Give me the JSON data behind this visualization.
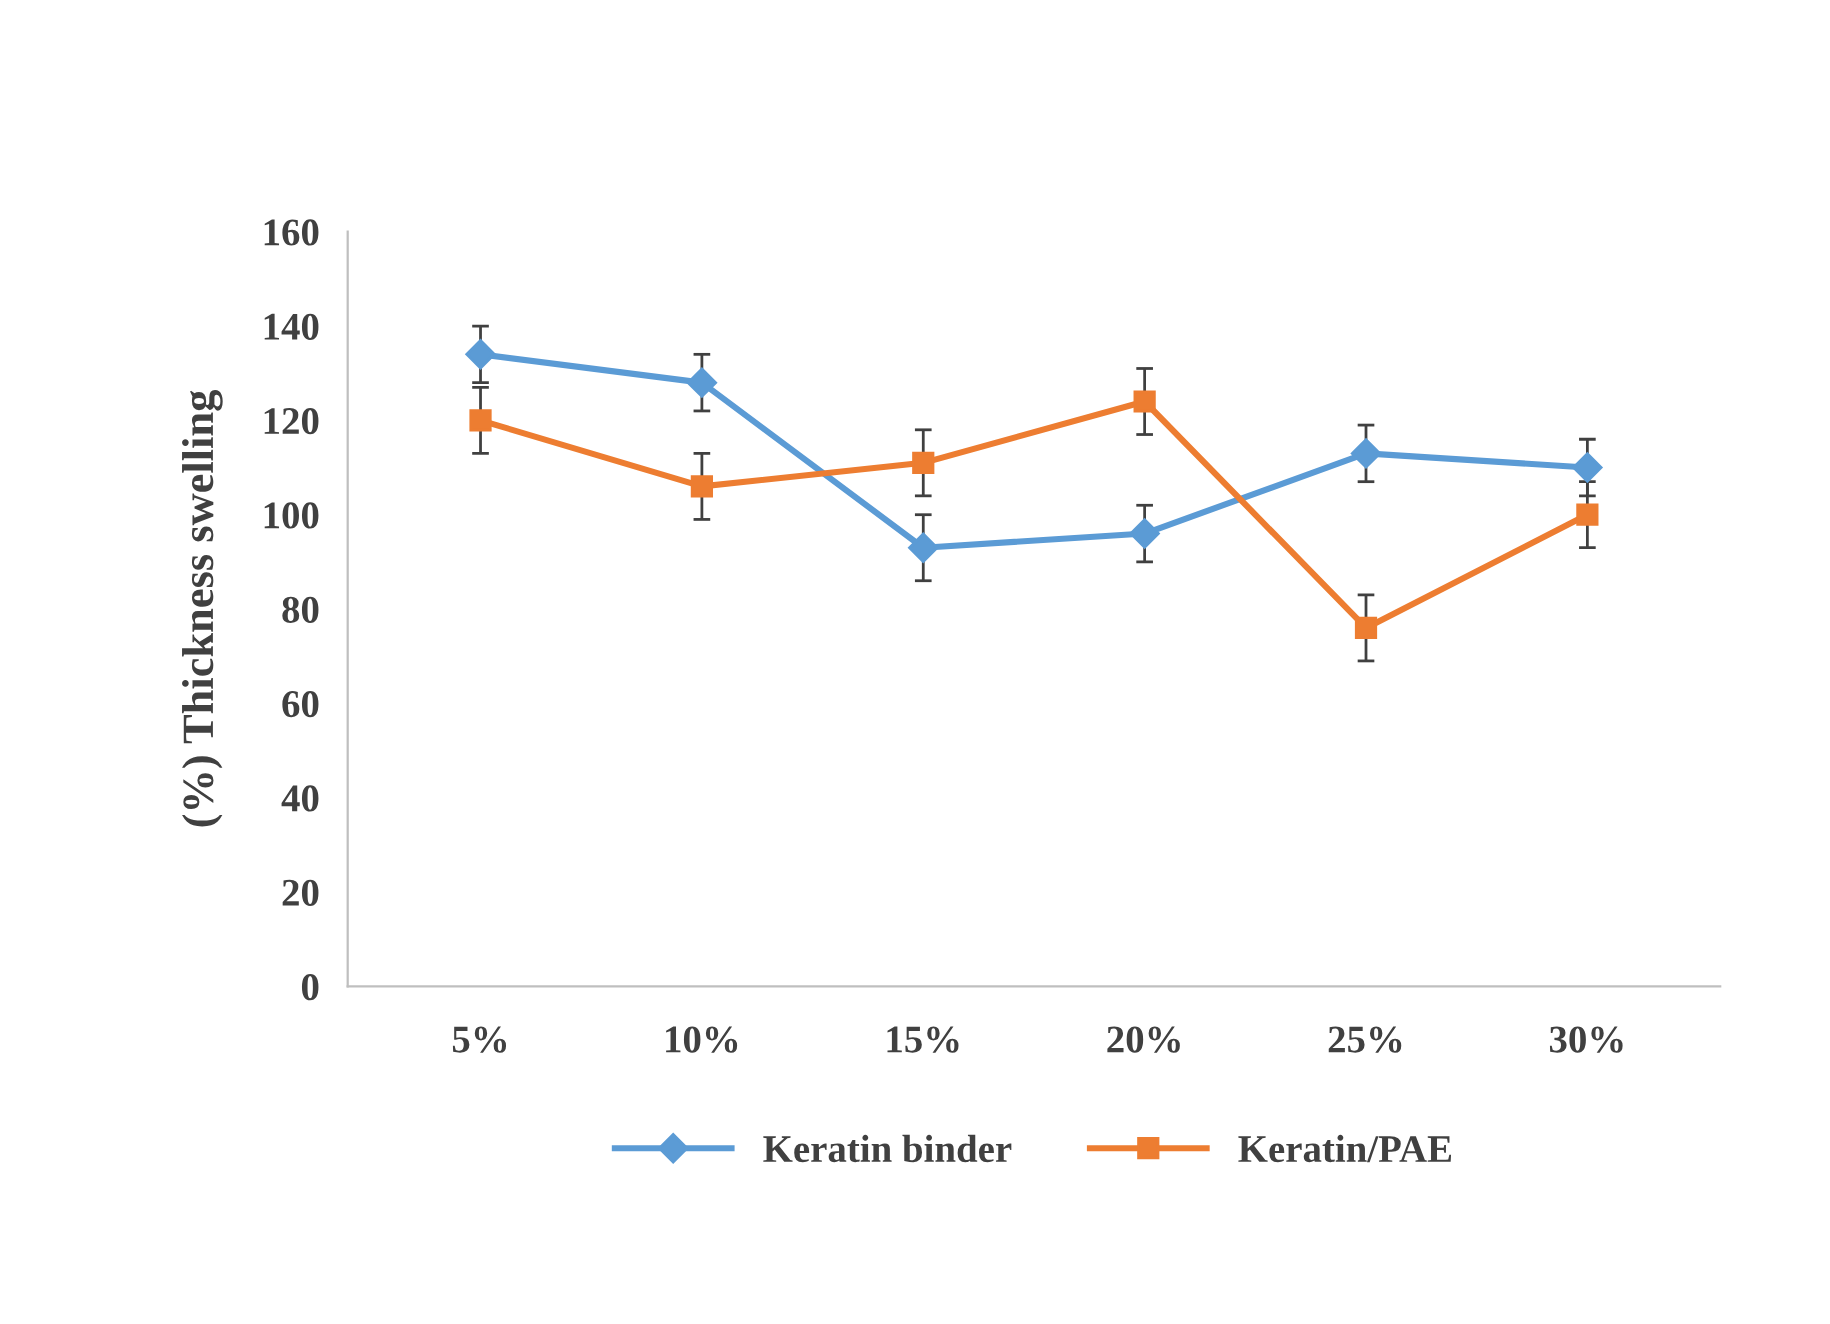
{
  "chart_data": {
    "type": "line",
    "ylabel": "(%) Thickness swelling",
    "categories": [
      "5%",
      "10%",
      "15%",
      "20%",
      "25%",
      "30%"
    ],
    "series": [
      {
        "name": "Keratin binder",
        "color": "#5b9bd5",
        "marker": "diamond",
        "values": [
          134,
          128,
          93,
          96,
          113,
          110
        ],
        "errors": [
          6,
          6,
          7,
          6,
          6,
          6
        ]
      },
      {
        "name": "Keratin/PAE",
        "color": "#ed7d31",
        "marker": "square",
        "values": [
          120,
          106,
          111,
          124,
          76,
          100
        ],
        "errors": [
          7,
          7,
          7,
          7,
          7,
          7
        ]
      }
    ],
    "ylim": [
      0,
      160
    ],
    "yticks": [
      0,
      20,
      40,
      60,
      80,
      100,
      120,
      140,
      160
    ],
    "grid": false,
    "legend": "bottom"
  }
}
